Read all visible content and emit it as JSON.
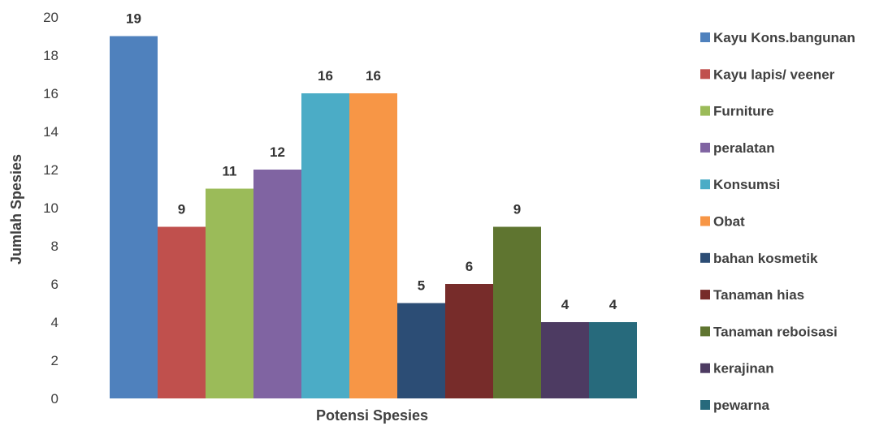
{
  "chart_data": {
    "type": "bar",
    "xlabel": "Potensi Spesies",
    "ylabel": "Jumlah Spesies",
    "ylim": [
      0,
      20
    ],
    "yticks": [
      0,
      2,
      4,
      6,
      8,
      10,
      12,
      14,
      16,
      18,
      20
    ],
    "grid": false,
    "legend_position": "right",
    "series": [
      {
        "name": "Kayu Kons.bangunan",
        "values": [
          19
        ],
        "color": "#4F81BD"
      },
      {
        "name": "Kayu lapis/ veener",
        "values": [
          9
        ],
        "color": "#C0504D"
      },
      {
        "name": "Furniture",
        "values": [
          11
        ],
        "color": "#9BBB59"
      },
      {
        "name": "peralatan",
        "values": [
          12
        ],
        "color": "#8064A2"
      },
      {
        "name": "Konsumsi",
        "values": [
          16
        ],
        "color": "#4BACC6"
      },
      {
        "name": "Obat",
        "values": [
          16
        ],
        "color": "#F79646"
      },
      {
        "name": "bahan kosmetik",
        "values": [
          5
        ],
        "color": "#2C4D75"
      },
      {
        "name": "Tanaman hias",
        "values": [
          6
        ],
        "color": "#772C2A"
      },
      {
        "name": "Tanaman reboisasi",
        "values": [
          9
        ],
        "color": "#5F7530"
      },
      {
        "name": "kerajinan",
        "values": [
          4
        ],
        "color": "#4D3B62"
      },
      {
        "name": "pewarna",
        "values": [
          4
        ],
        "color": "#276A7C"
      }
    ]
  }
}
